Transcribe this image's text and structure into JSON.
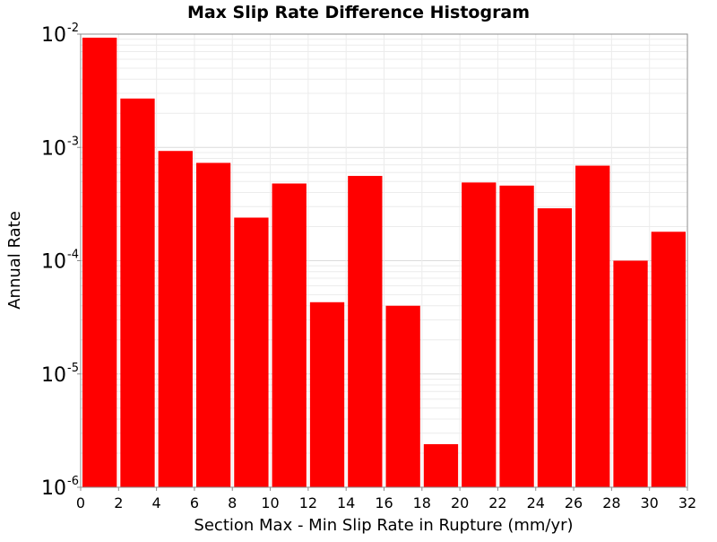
{
  "chart_data": {
    "type": "bar",
    "title": "Max Slip Rate Difference Histogram",
    "xlabel": "Section Max - Min Slip Rate in Rupture (mm/yr)",
    "ylabel": "Annual Rate",
    "y_scale": "log",
    "xlim": [
      0,
      32
    ],
    "ylim": [
      1e-06,
      0.01
    ],
    "bin_width": 2,
    "grid": true,
    "legend": "none",
    "bar_color": "#ff0000",
    "x_ticks": [
      "0",
      "2",
      "4",
      "6",
      "8",
      "10",
      "12",
      "14",
      "16",
      "18",
      "20",
      "22",
      "24",
      "26",
      "28",
      "30",
      "32"
    ],
    "y_ticks": [
      {
        "base": "10",
        "exp": "-6"
      },
      {
        "base": "10",
        "exp": "-5"
      },
      {
        "base": "10",
        "exp": "-4"
      },
      {
        "base": "10",
        "exp": "-3"
      },
      {
        "base": "10",
        "exp": "-2"
      }
    ],
    "x": [
      1,
      3,
      5,
      7,
      9,
      11,
      13,
      15,
      17,
      19,
      21,
      23,
      25,
      27,
      29,
      31
    ],
    "values": [
      0.0093,
      0.0027,
      0.00093,
      0.00073,
      0.00024,
      0.00048,
      4.3e-05,
      0.00056,
      4e-05,
      2.4e-06,
      0.00049,
      0.00046,
      0.00029,
      0.00069,
      0.0001,
      0.00018
    ]
  }
}
